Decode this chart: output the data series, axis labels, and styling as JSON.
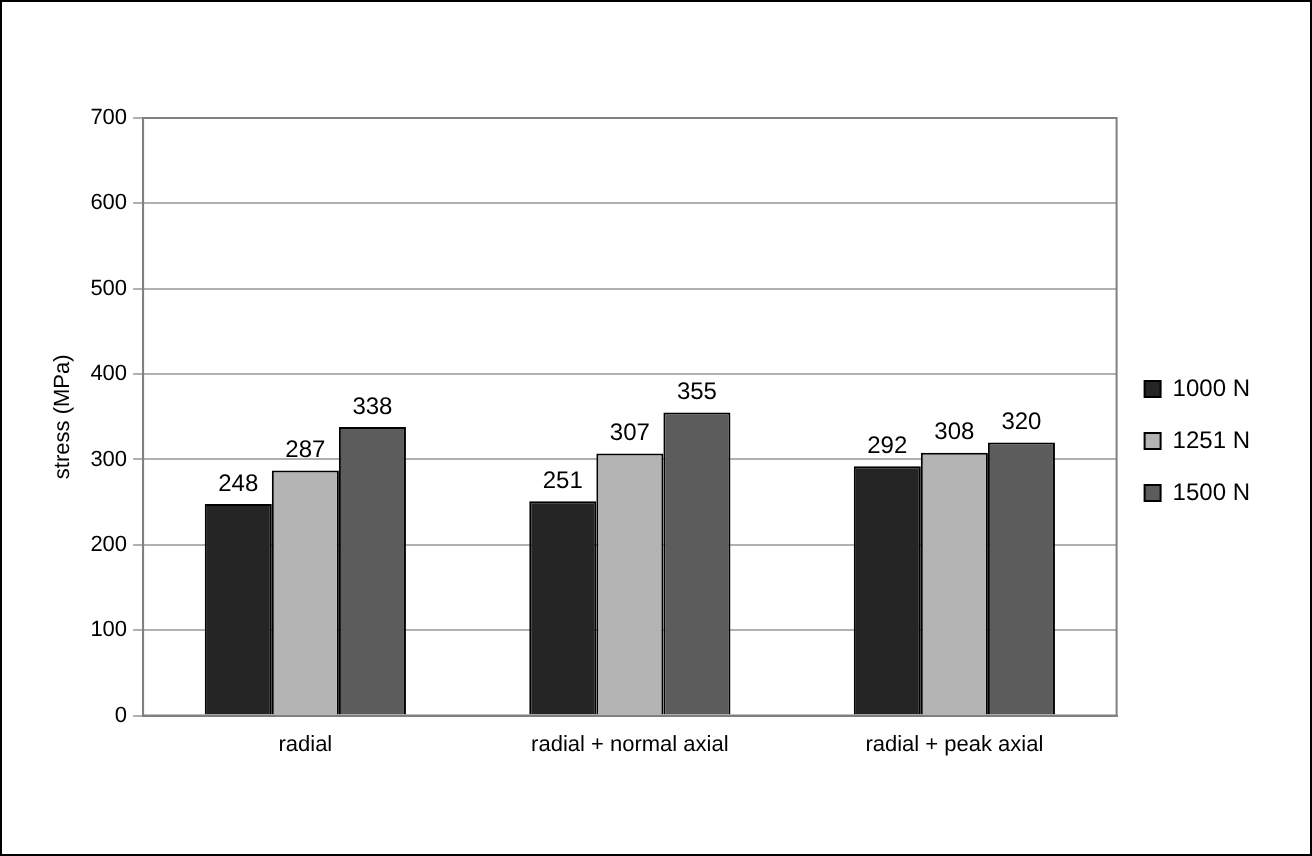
{
  "chart_data": {
    "type": "bar",
    "ylabel": "stress (MPa)",
    "categories": [
      "radial",
      "radial + normal axial",
      "radial + peak axial"
    ],
    "series": [
      {
        "name": "1000 N",
        "color": "#252525",
        "values": [
          248,
          251,
          292
        ]
      },
      {
        "name": "1251 N",
        "color": "#b4b4b4",
        "values": [
          287,
          307,
          308
        ]
      },
      {
        "name": "1500 N",
        "color": "#5c5c5c",
        "values": [
          338,
          355,
          320
        ]
      }
    ],
    "ylim": [
      0,
      700
    ],
    "yticks": [
      0,
      100,
      200,
      300,
      400,
      500,
      600,
      700
    ],
    "grid": "y",
    "legend": "right",
    "data_labels": true
  }
}
